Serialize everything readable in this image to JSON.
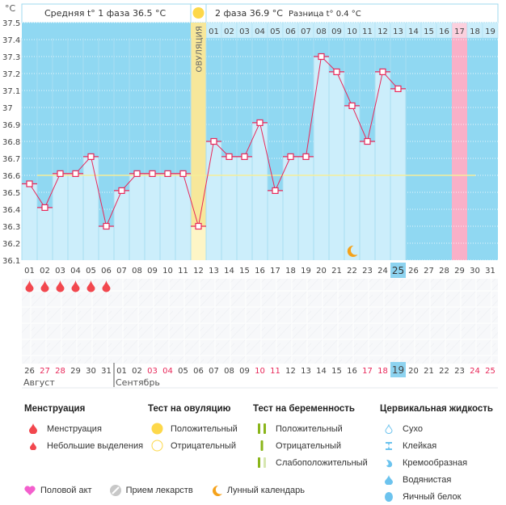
{
  "header": {
    "unit_label": "°C",
    "phase1_text": "Средняя t° 1 фаза 36.5 °C",
    "phase2_text": "2 фаза 36.9 °C",
    "diff_text": "Разница t° 0.4 °C",
    "ovulation_label": "ОВУЛЯЦИЯ"
  },
  "colors": {
    "sky": "#90d8f2",
    "bar": "#cceefb",
    "line": "#e8285a",
    "ovulation": "#f7e79a",
    "period_expected": "#f9b0c8",
    "coverline": "#f5ee9a",
    "today": "#8dd3f0",
    "blood": "#f2474e",
    "weekend": "#e8285a"
  },
  "chart_data": {
    "type": "line",
    "title": "Basal body temperature chart",
    "ylabel": "°C",
    "ylim": [
      36.1,
      37.5
    ],
    "yticks": [
      "37.5",
      "37.4",
      "37.3",
      "37.2",
      "37.1",
      "37",
      "36.9",
      "36.8",
      "36.7",
      "36.6",
      "36.5",
      "36.4",
      "36.3",
      "36.2",
      "36.1"
    ],
    "cycle_days": [
      "01",
      "02",
      "03",
      "04",
      "05",
      "06",
      "07",
      "08",
      "09",
      "10",
      "11",
      "12",
      "13",
      "14",
      "15",
      "16",
      "17",
      "18",
      "19",
      "20",
      "21",
      "22",
      "23",
      "24",
      "25",
      "26",
      "27",
      "28",
      "29",
      "30",
      "31"
    ],
    "phase2_days": [
      "01",
      "02",
      "03",
      "04",
      "05",
      "06",
      "07",
      "08",
      "09",
      "10",
      "11",
      "12",
      "13",
      "14",
      "15",
      "16",
      "17",
      "18",
      "19"
    ],
    "temperatures": [
      36.55,
      36.41,
      36.61,
      36.61,
      36.71,
      36.3,
      36.51,
      36.61,
      36.61,
      36.61,
      36.61,
      36.3,
      36.8,
      36.71,
      36.71,
      36.91,
      36.51,
      36.71,
      36.71,
      37.3,
      37.21,
      37.01,
      36.8,
      37.21,
      37.11
    ],
    "coverline": 36.6,
    "ovulation_day": 12,
    "expected_period_day": 29,
    "today_day": 25,
    "moon_day": 22,
    "menstruation_days": [
      1,
      2,
      3,
      4,
      5,
      6
    ],
    "calendar_dates": [
      "26",
      "27",
      "28",
      "29",
      "30",
      "31",
      "01",
      "02",
      "03",
      "04",
      "05",
      "06",
      "07",
      "08",
      "09",
      "10",
      "11",
      "12",
      "13",
      "14",
      "15",
      "16",
      "17",
      "18",
      "19",
      "20",
      "21",
      "22",
      "23",
      "24",
      "25"
    ],
    "weekend_indexes": [
      1,
      2,
      8,
      9,
      15,
      16,
      22,
      23,
      29,
      30
    ],
    "today_calendar_index": 24,
    "months": [
      {
        "name": "Август",
        "start_index": 0
      },
      {
        "name": "Сентябрь",
        "start_index": 6
      }
    ]
  },
  "legend": {
    "menstruation": {
      "title": "Менструация",
      "items": [
        "Менструация",
        "Небольшие выделения"
      ]
    },
    "ovulation_test": {
      "title": "Тест на овуляцию",
      "items": [
        "Положительный",
        "Отрицательный"
      ]
    },
    "pregnancy_test": {
      "title": "Тест на беременность",
      "items": [
        "Положительный",
        "Отрицательный",
        "Слабоположительный"
      ]
    },
    "cervical_fluid": {
      "title": "Цервикальная жидкость",
      "items": [
        "Сухо",
        "Клейкая",
        "Кремообразная",
        "Водянистая",
        "Яичный белок"
      ]
    },
    "bottom": [
      "Половой акт",
      "Прием лекарств",
      "Лунный календарь"
    ]
  }
}
